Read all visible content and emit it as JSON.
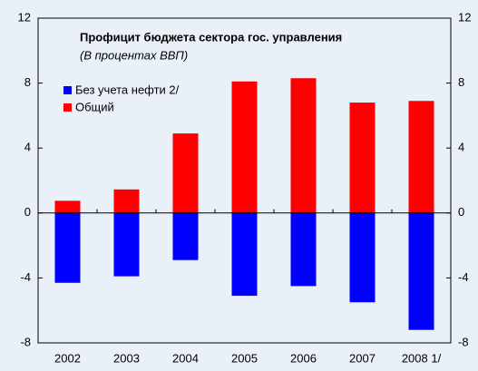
{
  "chart_data": {
    "type": "bar",
    "title": "Профицит бюджета сектора гос. управления",
    "subtitle": "(В процентах ВВП)",
    "categories": [
      "2002",
      "2003",
      "2004",
      "2005",
      "2006",
      "2007",
      "2008 1/"
    ],
    "series": [
      {
        "name": "Без учета нефти 2/",
        "color": "#0000ff",
        "values": [
          -4.3,
          -3.9,
          -2.9,
          -5.1,
          -4.5,
          -5.5,
          -7.2
        ]
      },
      {
        "name": "Общий",
        "color": "#ff0000",
        "values": [
          0.75,
          1.45,
          4.9,
          8.1,
          8.3,
          6.8,
          6.9
        ]
      }
    ],
    "ylim": [
      -8,
      12
    ],
    "yticks": [
      -8,
      -4,
      0,
      4,
      8,
      12
    ]
  }
}
